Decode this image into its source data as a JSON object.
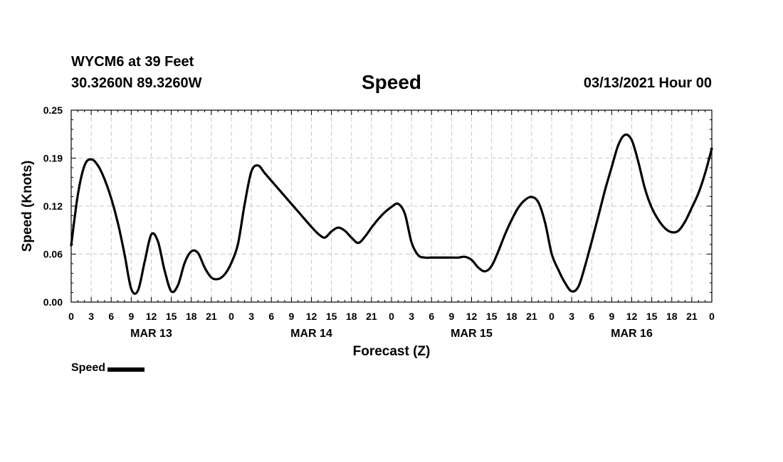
{
  "header": {
    "station": "WYCM6 at 39 Feet",
    "coords": "30.3260N 89.3260W",
    "title": "Speed",
    "datetime": "03/13/2021 Hour 00"
  },
  "legend": {
    "label": "Speed"
  },
  "chart_data": {
    "type": "line",
    "title": "Speed",
    "xlabel": "Forecast (Z)",
    "ylabel": "Speed (Knots)",
    "xlim": [
      0,
      96
    ],
    "ylim": [
      0,
      0.25
    ],
    "yticks": [
      "0.00",
      "0.06",
      "0.12",
      "0.19",
      "0.25"
    ],
    "ytick_values": [
      0,
      0.0625,
      0.125,
      0.1875,
      0.25
    ],
    "xtick_labels": [
      "0",
      "3",
      "6",
      "9",
      "12",
      "15",
      "18",
      "21",
      "0",
      "3",
      "6",
      "9",
      "12",
      "15",
      "18",
      "21",
      "0",
      "3",
      "6",
      "9",
      "12",
      "15",
      "18",
      "21",
      "0",
      "3",
      "6",
      "9",
      "12",
      "15",
      "18",
      "21",
      "0"
    ],
    "day_labels": [
      {
        "label": "MAR 13",
        "x": 12
      },
      {
        "label": "MAR 14",
        "x": 36
      },
      {
        "label": "MAR 15",
        "x": 60
      },
      {
        "label": "MAR 16",
        "x": 84
      }
    ],
    "grid": true,
    "legend_position": "bottom-left",
    "series": [
      {
        "name": "Speed",
        "color": "#000000",
        "x": [
          0,
          1,
          2,
          3,
          4,
          5,
          6,
          7,
          8,
          9,
          10,
          11,
          12,
          13,
          14,
          15,
          16,
          17,
          18,
          19,
          20,
          21,
          22,
          23,
          24,
          25,
          26,
          27,
          28,
          29,
          30,
          31,
          32,
          33,
          34,
          35,
          36,
          37,
          38,
          39,
          40,
          41,
          42,
          43,
          44,
          45,
          46,
          47,
          48,
          49,
          50,
          51,
          52,
          53,
          54,
          55,
          56,
          57,
          58,
          59,
          60,
          61,
          62,
          63,
          64,
          65,
          66,
          67,
          68,
          69,
          70,
          71,
          72,
          73,
          74,
          75,
          76,
          77,
          78,
          79,
          80,
          81,
          82,
          83,
          84,
          85,
          86,
          87,
          88,
          89,
          90,
          91,
          92,
          93,
          94,
          95,
          96
        ],
        "y": [
          0.074,
          0.14,
          0.178,
          0.186,
          0.178,
          0.16,
          0.135,
          0.103,
          0.062,
          0.017,
          0.015,
          0.052,
          0.088,
          0.079,
          0.041,
          0.014,
          0.022,
          0.051,
          0.066,
          0.064,
          0.045,
          0.032,
          0.03,
          0.036,
          0.051,
          0.076,
          0.128,
          0.17,
          0.178,
          0.168,
          0.158,
          0.148,
          0.138,
          0.128,
          0.118,
          0.108,
          0.098,
          0.089,
          0.084,
          0.092,
          0.097,
          0.093,
          0.084,
          0.077,
          0.085,
          0.097,
          0.108,
          0.117,
          0.124,
          0.128,
          0.115,
          0.078,
          0.061,
          0.058,
          0.058,
          0.058,
          0.058,
          0.058,
          0.058,
          0.059,
          0.055,
          0.045,
          0.04,
          0.047,
          0.066,
          0.088,
          0.107,
          0.123,
          0.133,
          0.137,
          0.13,
          0.104,
          0.063,
          0.042,
          0.025,
          0.014,
          0.02,
          0.047,
          0.079,
          0.112,
          0.146,
          0.176,
          0.205,
          0.218,
          0.211,
          0.182,
          0.147,
          0.123,
          0.107,
          0.096,
          0.091,
          0.093,
          0.105,
          0.123,
          0.142,
          0.168,
          0.2
        ]
      }
    ]
  }
}
